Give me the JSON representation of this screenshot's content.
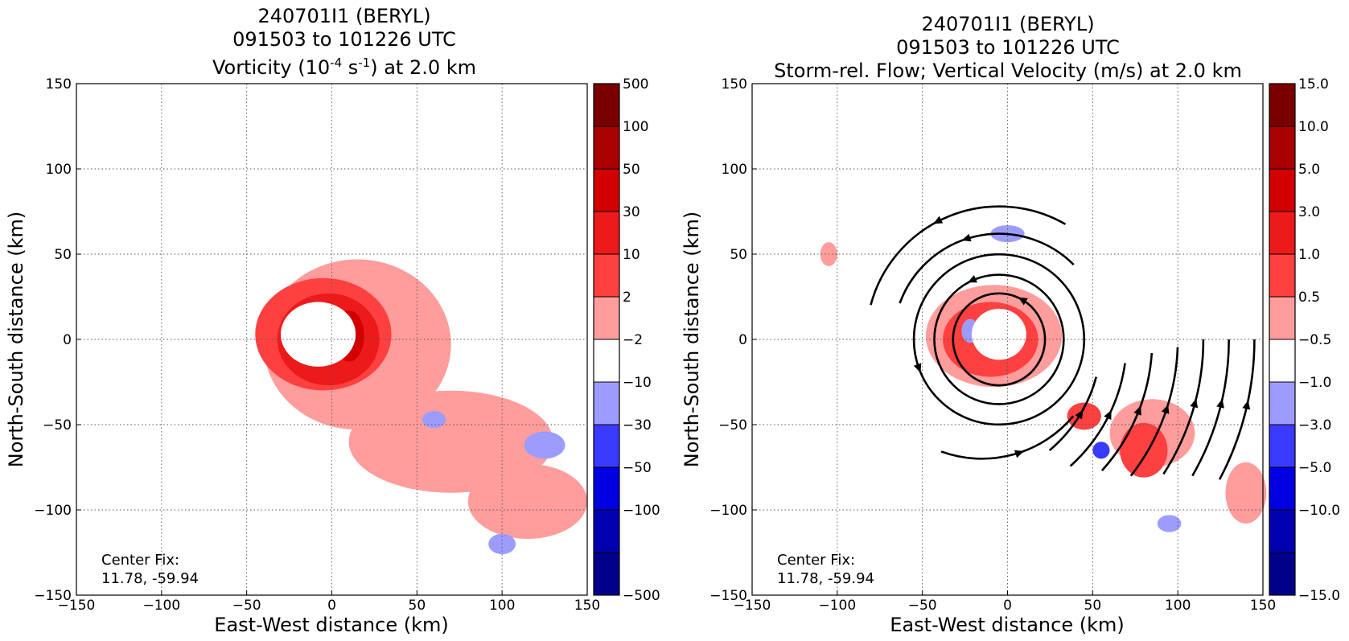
{
  "chart_data": [
    {
      "type": "heatmap",
      "title": [
        "240701I1 (BERYL)",
        "091503 to 101226 UTC"
      ],
      "subtitle": {
        "pre": "Vorticity (10",
        "sup1": "-4",
        "mid": " s",
        "sup2": "-1",
        "post": ") at 2.0 km"
      },
      "xlabel": "East-West distance (km)",
      "ylabel": "North-South distance (km)",
      "xlim": [
        -150,
        150
      ],
      "ylim": [
        -150,
        150
      ],
      "xticks": [
        "−150",
        "−100",
        "−50",
        "0",
        "50",
        "100",
        "150"
      ],
      "yticks": [
        "150",
        "100",
        "50",
        "0",
        "−50",
        "−100",
        "−150"
      ],
      "grid": true,
      "colorbar": {
        "labels": [
          "500",
          "100",
          "50",
          "30",
          "10",
          "2",
          "−2",
          "−10",
          "−30",
          "−50",
          "−100",
          "−500"
        ],
        "colors": [
          "#7a0000",
          "#a90000",
          "#d20000",
          "#ec1a1a",
          "#ff4040",
          "#ff9c9c",
          "#ffffff",
          "#9c9cff",
          "#3a3aff",
          "#0000e0",
          "#0000b0",
          "#00008a"
        ]
      },
      "annotation": [
        "Center Fix:",
        "11.78, -59.94"
      ],
      "field_regions": [
        {
          "level": 1,
          "center": [
            15,
            -3
          ],
          "radius": [
            55,
            50
          ]
        },
        {
          "level": 1,
          "center": [
            70,
            -60
          ],
          "radius": [
            60,
            30
          ]
        },
        {
          "level": 1,
          "center": [
            115,
            -95
          ],
          "radius": [
            35,
            22
          ]
        },
        {
          "level": 2,
          "center": [
            -5,
            3
          ],
          "radius": [
            40,
            33
          ]
        },
        {
          "level": 3,
          "center": [
            -2,
            0
          ],
          "radius": [
            30,
            27
          ]
        },
        {
          "level": 4,
          "center": [
            10,
            2
          ],
          "radius": [
            9,
            15
          ]
        },
        {
          "level": -1,
          "center": [
            125,
            -62
          ],
          "radius": [
            12,
            8
          ]
        },
        {
          "level": -1,
          "center": [
            100,
            -120
          ],
          "radius": [
            8,
            6
          ]
        },
        {
          "level": -1,
          "center": [
            60,
            -47
          ],
          "radius": [
            7,
            5
          ]
        }
      ],
      "eye": {
        "center": [
          -8,
          3
        ],
        "radius": [
          22,
          19
        ]
      }
    },
    {
      "type": "heatmap",
      "title": [
        "240701I1 (BERYL)",
        "091503 to 101226 UTC"
      ],
      "subtitle": "Storm-rel. Flow; Vertical Velocity (m/s) at 2.0 km",
      "xlabel": "East-West distance (km)",
      "ylabel": "North-South distance (km)",
      "xlim": [
        -150,
        150
      ],
      "ylim": [
        -150,
        150
      ],
      "xticks": [
        "−150",
        "−100",
        "−50",
        "0",
        "50",
        "100",
        "150"
      ],
      "yticks": [
        "150",
        "100",
        "50",
        "0",
        "−50",
        "−100",
        "−150"
      ],
      "grid": true,
      "colorbar": {
        "labels": [
          "15.0",
          "10.0",
          "5.0",
          "3.0",
          "1.0",
          "0.5",
          "−0.5",
          "−1.0",
          "−3.0",
          "−5.0",
          "−10.0",
          "−15.0"
        ],
        "colors": [
          "#7a0000",
          "#a90000",
          "#d20000",
          "#ec1a1a",
          "#ff4040",
          "#ff9c9c",
          "#ffffff",
          "#9c9cff",
          "#3a3aff",
          "#0000e0",
          "#0000b0",
          "#00008a"
        ]
      },
      "annotation": [
        "Center Fix:",
        "11.78, -59.94"
      ],
      "field_regions": [
        {
          "level": 1,
          "center": [
            -8,
            2
          ],
          "radius": [
            40,
            30
          ]
        },
        {
          "level": 2,
          "center": [
            -10,
            0
          ],
          "radius": [
            28,
            22
          ]
        },
        {
          "level": 1,
          "center": [
            85,
            -55
          ],
          "radius": [
            25,
            20
          ]
        },
        {
          "level": 2,
          "center": [
            80,
            -65
          ],
          "radius": [
            14,
            16
          ]
        },
        {
          "level": 2,
          "center": [
            45,
            -45
          ],
          "radius": [
            10,
            8
          ]
        },
        {
          "level": 1,
          "center": [
            140,
            -90
          ],
          "radius": [
            12,
            18
          ]
        },
        {
          "level": 1,
          "center": [
            -105,
            50
          ],
          "radius": [
            5,
            7
          ]
        },
        {
          "level": -1,
          "center": [
            0,
            62
          ],
          "radius": [
            10,
            5
          ]
        },
        {
          "level": -1,
          "center": [
            -22,
            5
          ],
          "radius": [
            5,
            7
          ]
        },
        {
          "level": -2,
          "center": [
            55,
            -65
          ],
          "radius": [
            5,
            5
          ]
        },
        {
          "level": -1,
          "center": [
            95,
            -108
          ],
          "radius": [
            7,
            5
          ]
        }
      ],
      "eye": {
        "center": [
          -5,
          3
        ],
        "radius": [
          16,
          15
        ]
      },
      "streamlines": [
        {
          "type": "circle",
          "center": [
            -5,
            0
          ],
          "radius": 27,
          "arrow_deg": 60
        },
        {
          "type": "circle",
          "center": [
            -5,
            0
          ],
          "radius": 38,
          "arrow_deg": 115
        },
        {
          "type": "circle",
          "center": [
            -5,
            0
          ],
          "radius": 50,
          "arrow_deg": 200
        },
        {
          "type": "arc",
          "center": [
            -5,
            0
          ],
          "radius": 62,
          "start_deg": 45,
          "end_deg": 160
        },
        {
          "type": "arc",
          "center": [
            -5,
            0
          ],
          "radius": 78,
          "start_deg": 60,
          "end_deg": 165
        },
        {
          "type": "arc",
          "center": [
            -15,
            0
          ],
          "radius": 70,
          "start_deg": 250,
          "end_deg": 320
        },
        {
          "type": "arc",
          "center": [
            -30,
            0
          ],
          "radius": 85,
          "start_deg": 310,
          "end_deg": 345
        },
        {
          "type": "arc",
          "center": [
            -30,
            0
          ],
          "radius": 100,
          "start_deg": 312,
          "end_deg": 352
        },
        {
          "type": "arc",
          "center": [
            -30,
            0
          ],
          "radius": 115,
          "start_deg": 318,
          "end_deg": 356
        },
        {
          "type": "arc",
          "center": [
            -30,
            0
          ],
          "radius": 130,
          "start_deg": 322,
          "end_deg": 358
        },
        {
          "type": "arc",
          "center": [
            -30,
            0
          ],
          "radius": 145,
          "start_deg": 327,
          "end_deg": 0
        },
        {
          "type": "arc",
          "center": [
            -30,
            0
          ],
          "radius": 160,
          "start_deg": 330,
          "end_deg": 0
        },
        {
          "type": "arc",
          "center": [
            -30,
            0
          ],
          "radius": 175,
          "start_deg": 332,
          "end_deg": 0
        }
      ]
    }
  ]
}
